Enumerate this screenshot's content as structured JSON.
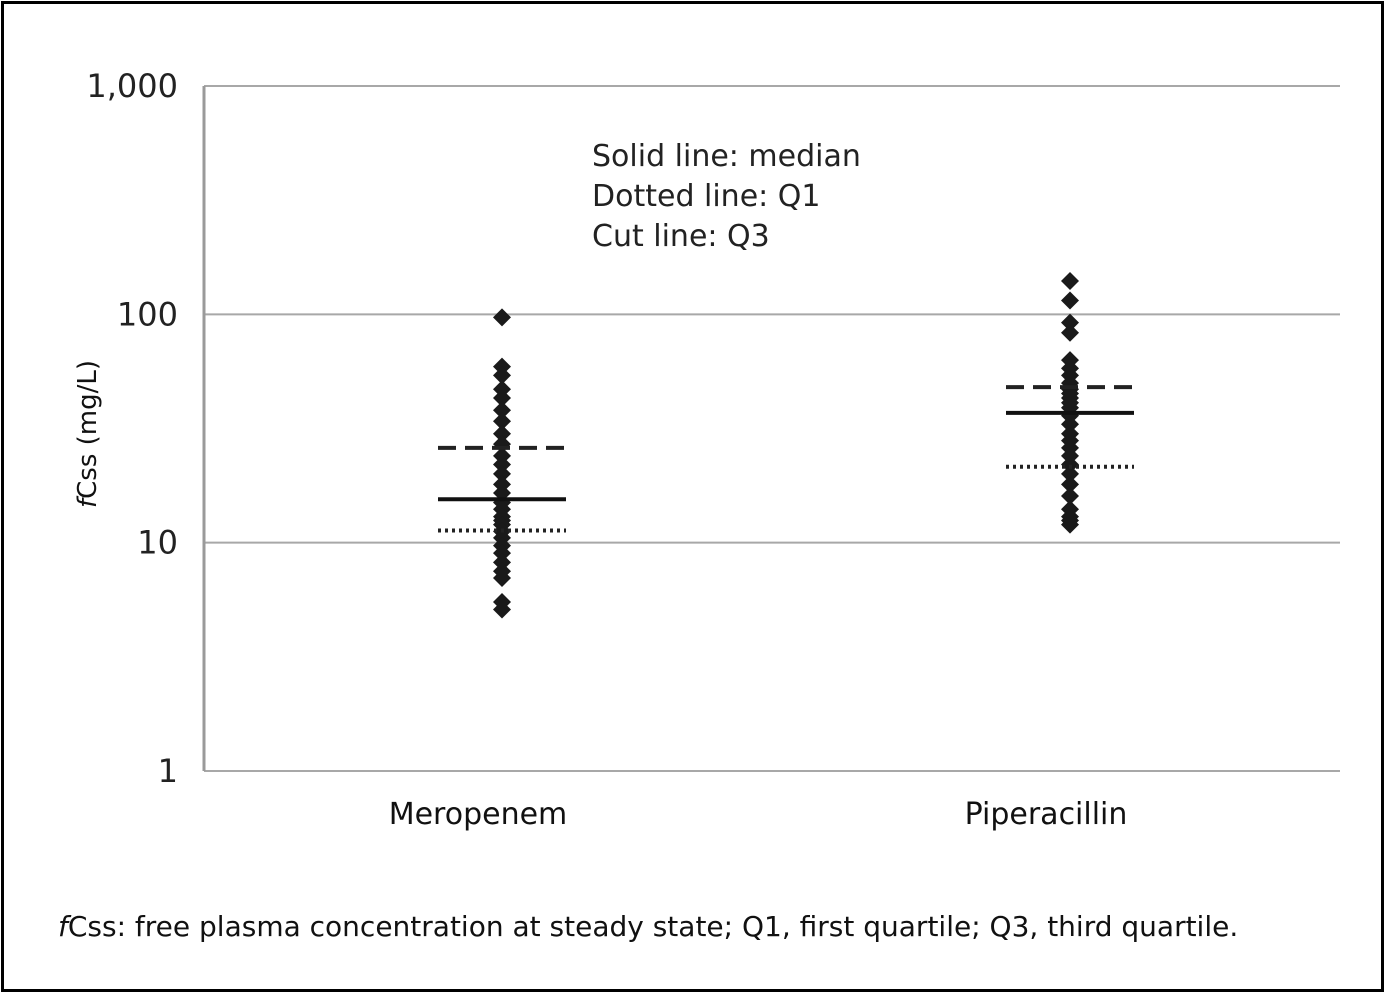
{
  "chart_data": {
    "type": "scatter",
    "y_scale": "log",
    "ylim": [
      1,
      1000
    ],
    "y_ticks": [
      {
        "value": 1,
        "label": "1"
      },
      {
        "value": 10,
        "label": "10"
      },
      {
        "value": 100,
        "label": "100"
      },
      {
        "value": 1000,
        "label": "1,000"
      }
    ],
    "ylabel_prefix": "f",
    "ylabel_rest": "Css (mg/L)",
    "grid": true,
    "categories": [
      "Meropenem",
      "Piperacillin"
    ],
    "annotations": [
      "Solid line: median",
      "Dotted line: Q1",
      "Cut line: Q3"
    ],
    "series": [
      {
        "category": "Meropenem",
        "values": [
          97,
          59,
          54,
          47,
          43,
          38,
          34,
          30,
          27,
          24,
          22,
          20,
          18,
          16.5,
          15,
          14,
          13,
          12.5,
          12,
          11.2,
          10.5,
          9.7,
          9,
          8.2,
          7.5,
          7,
          5.5,
          5.1
        ],
        "median": 15.5,
        "q1": 11.3,
        "q3": 26
      },
      {
        "category": "Piperacillin",
        "values": [
          140,
          115,
          92,
          83,
          63,
          58,
          54,
          50,
          47,
          45,
          43,
          41,
          39,
          36,
          33,
          30,
          28,
          26,
          24,
          22,
          20,
          18,
          16,
          14,
          13,
          12.5,
          12
        ],
        "median": 37,
        "q1": 21.5,
        "q3": 48
      }
    ]
  },
  "footnote": {
    "prefix": "f",
    "rest": "Css: free plasma concentration at steady state; Q1, first quartile; Q3, third quartile."
  }
}
